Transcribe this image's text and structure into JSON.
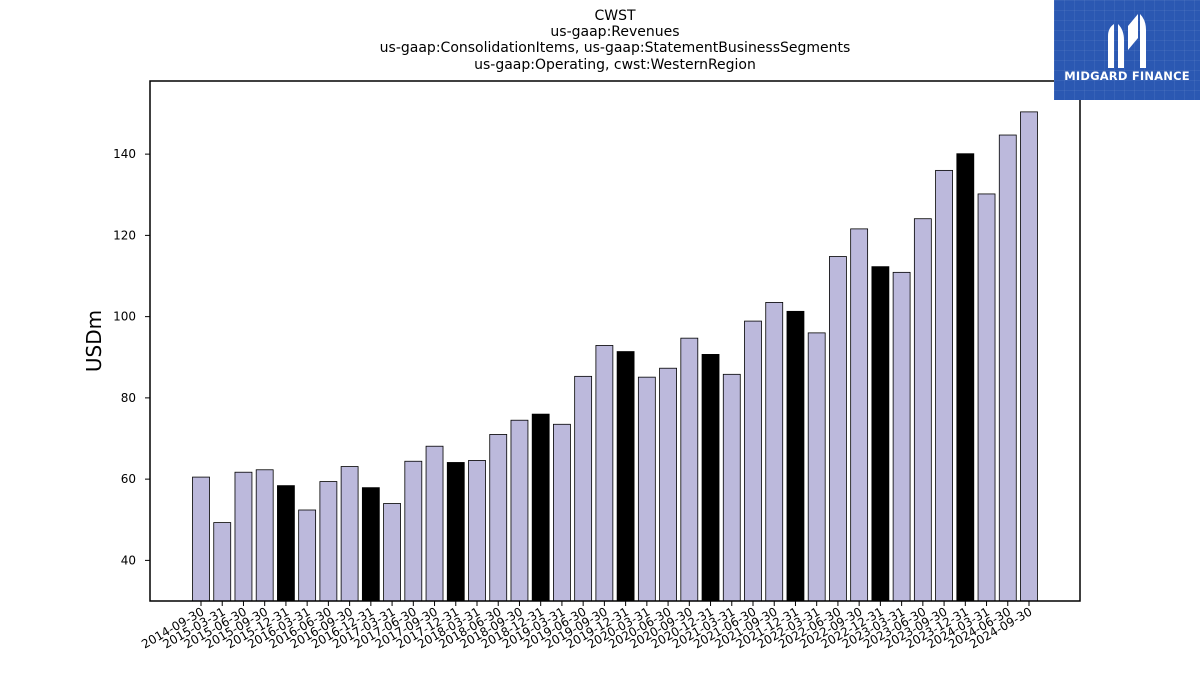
{
  "logo": {
    "text": "MIDGARD FINANCE",
    "bg_color": "#2b58b2"
  },
  "chart_data": {
    "type": "bar",
    "title_lines": [
      "CWST",
      "us-gaap:Revenues",
      "us-gaap:ConsolidationItems, us-gaap:StatementBusinessSegments",
      "us-gaap:Operating, cwst:WesternRegion"
    ],
    "xlabel": "",
    "ylabel": "USDm",
    "ylim": [
      30,
      158
    ],
    "yticks": [
      40,
      60,
      80,
      100,
      120,
      140
    ],
    "grid": false,
    "legend": "none",
    "colors": {
      "normal": "#bcb9dc",
      "highlight": "#000000",
      "edge": "#000000"
    },
    "categories": [
      "2014-09-30",
      "2015-03-31",
      "2015-06-30",
      "2015-09-30",
      "2015-12-31",
      "2016-03-31",
      "2016-06-30",
      "2016-09-30",
      "2016-12-31",
      "2017-03-31",
      "2017-06-30",
      "2017-09-30",
      "2017-12-31",
      "2018-03-31",
      "2018-06-30",
      "2018-09-30",
      "2018-12-31",
      "2019-03-31",
      "2019-06-30",
      "2019-09-30",
      "2019-12-31",
      "2020-03-31",
      "2020-06-30",
      "2020-09-30",
      "2020-12-31",
      "2021-03-31",
      "2021-06-30",
      "2021-09-30",
      "2021-12-31",
      "2022-03-31",
      "2022-06-30",
      "2022-09-30",
      "2022-12-31",
      "2023-03-31",
      "2023-06-30",
      "2023-09-30",
      "2023-12-31",
      "2024-03-31",
      "2024-06-30",
      "2024-09-30"
    ],
    "values": [
      60.5,
      49.3,
      61.7,
      62.3,
      58.4,
      52.4,
      59.4,
      63.1,
      57.9,
      54.0,
      64.4,
      68.1,
      64.1,
      64.6,
      71.0,
      74.5,
      76.0,
      73.5,
      85.3,
      92.9,
      91.4,
      85.1,
      87.3,
      94.7,
      90.7,
      85.8,
      98.9,
      103.5,
      101.3,
      96.0,
      114.8,
      121.6,
      112.3,
      110.9,
      124.1,
      136.0,
      140.1,
      130.2,
      144.7,
      150.4
    ],
    "highlighted": [
      false,
      false,
      false,
      false,
      true,
      false,
      false,
      false,
      true,
      false,
      false,
      false,
      true,
      false,
      false,
      false,
      true,
      false,
      false,
      false,
      true,
      false,
      false,
      false,
      true,
      false,
      false,
      false,
      true,
      false,
      false,
      false,
      true,
      false,
      false,
      false,
      true,
      false,
      false,
      false
    ]
  }
}
